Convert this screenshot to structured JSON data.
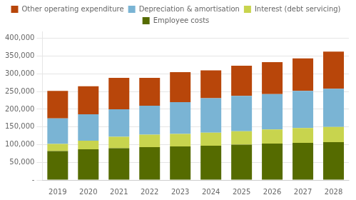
{
  "chart_data": {
    "type": "bar",
    "stacked": true,
    "categories": [
      "2019",
      "2020",
      "2021",
      "2022",
      "2023",
      "2024",
      "2025",
      "2026",
      "2027",
      "2028"
    ],
    "series": [
      {
        "name": "Employee costs",
        "color": "#556b00",
        "values": [
          82000,
          87000,
          90000,
          93000,
          95000,
          97000,
          100000,
          103000,
          105000,
          107000
        ]
      },
      {
        "name": "Interest (debt servicing)",
        "color": "#c8d44e",
        "values": [
          20000,
          24000,
          32000,
          35000,
          35000,
          37000,
          38000,
          40000,
          42000,
          43000
        ]
      },
      {
        "name": "Depreciation & amortisation",
        "color": "#7ab4d4",
        "values": [
          72000,
          75000,
          78000,
          82000,
          90000,
          97000,
          100000,
          100000,
          105000,
          108000
        ]
      },
      {
        "name": "Other operating expenditure",
        "color": "#b8460a",
        "values": [
          78000,
          79000,
          89000,
          79000,
          85000,
          79000,
          85000,
          90000,
          92000,
          105000
        ]
      }
    ],
    "ylim": [
      0,
      420000
    ],
    "yticks": [
      {
        "value": 0,
        "label": "-"
      },
      {
        "value": 50000,
        "label": "50,000"
      },
      {
        "value": 100000,
        "label": "100,000"
      },
      {
        "value": 150000,
        "label": "150,000"
      },
      {
        "value": 200000,
        "label": "200,000"
      },
      {
        "value": 250000,
        "label": "250,000"
      },
      {
        "value": 300000,
        "label": "300,000"
      },
      {
        "value": 350000,
        "label": "350,000"
      },
      {
        "value": 400000,
        "label": "400,000"
      }
    ],
    "grid": true,
    "legend": "top"
  }
}
